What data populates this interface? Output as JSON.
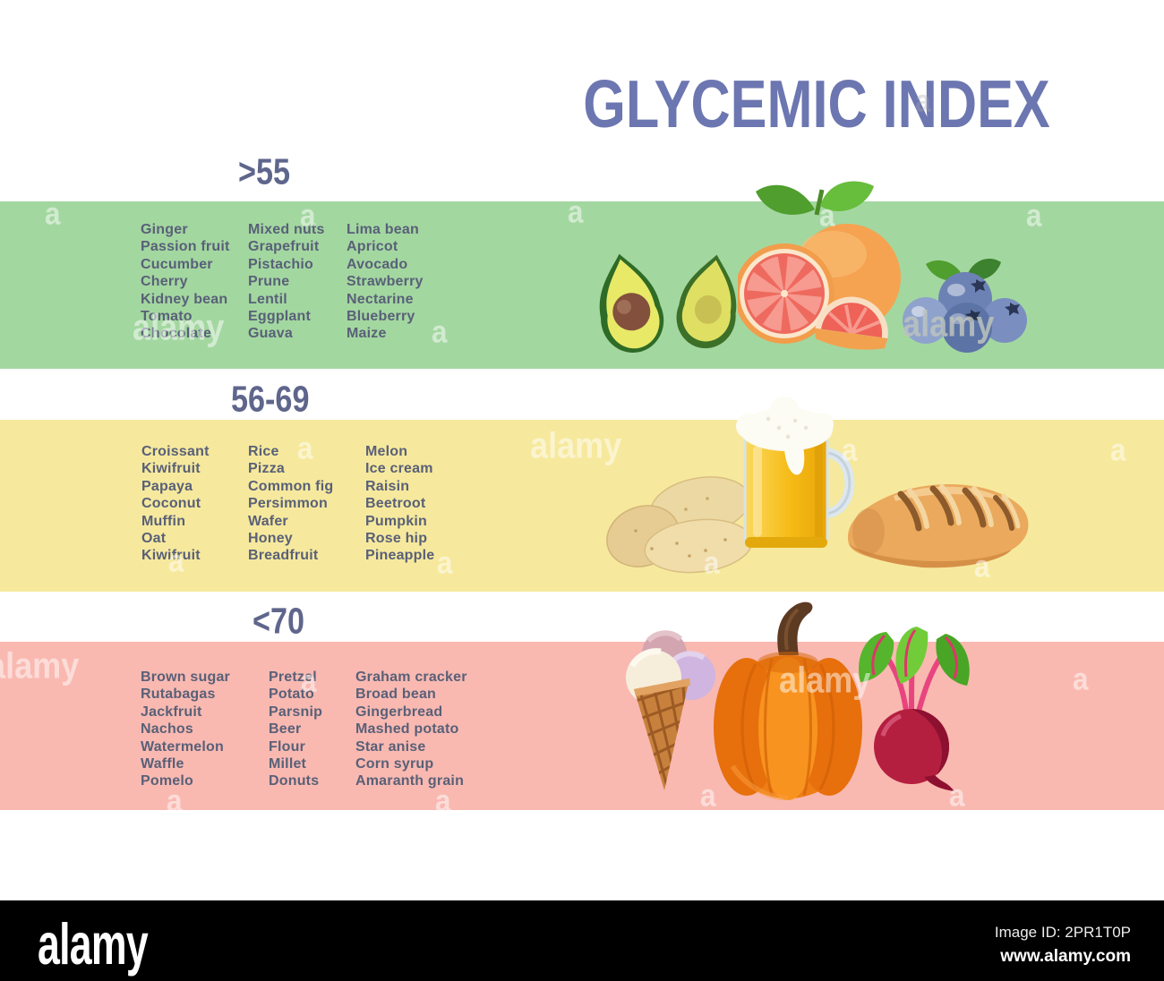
{
  "title": "GLYCEMIC INDEX",
  "sections": [
    {
      "range_label": ">55",
      "band_color": "#a3d7a0",
      "columns": [
        [
          "Ginger",
          "Passion fruit",
          "Cucumber",
          "Cherry",
          "Kidney bean",
          "Tomato",
          "Chocolate"
        ],
        [
          "Mixed nuts",
          "Grapefruit",
          "Pistachio",
          "Prune",
          "Lentil",
          "Eggplant",
          "Guava"
        ],
        [
          "Lima bean",
          "Apricot",
          "Avocado",
          "Strawberry",
          "Nectarine",
          "Blueberry",
          "Maize"
        ]
      ],
      "illustrations": [
        "avocado",
        "grapefruit",
        "blueberries"
      ]
    },
    {
      "range_label": "56-69",
      "band_color": "#f6e99d",
      "columns": [
        [
          "Croissant",
          "Kiwifruit",
          "Papaya",
          "Coconut",
          "Muffin",
          "Oat",
          "Kiwifruit"
        ],
        [
          "Rice",
          "Pizza",
          "Common fig",
          "Persimmon",
          "Wafer",
          "Honey",
          "Breadfruit"
        ],
        [
          "Melon",
          "Ice cream",
          "Raisin",
          "Beetroot",
          "Pumpkin",
          "Rose hip",
          "Pineapple"
        ]
      ],
      "illustrations": [
        "potatoes",
        "beer-mug",
        "bread-loaf"
      ]
    },
    {
      "range_label": "<70",
      "band_color": "#f9b9b1",
      "columns": [
        [
          "Brown sugar",
          "Rutabagas",
          "Jackfruit",
          "Nachos",
          "Watermelon",
          "Waffle",
          "Pomelo"
        ],
        [
          "Pretzel",
          "Potato",
          "Parsnip",
          "Beer",
          "Flour",
          "Millet",
          "Donuts"
        ],
        [
          "Graham cracker",
          "Broad bean",
          "Gingerbread",
          "Mashed potato",
          "Star anise",
          "Corn syrup",
          "Amaranth grain"
        ]
      ],
      "illustrations": [
        "ice-cream-cone",
        "pumpkin",
        "beetroot"
      ]
    }
  ],
  "watermark": {
    "word": "alamy",
    "letter": "a"
  },
  "footer": {
    "logo": "alamy",
    "image_id": "Image ID: 2PR1T0P",
    "url": "www.alamy.com"
  },
  "colors": {
    "title_text": "#6c76b0",
    "heading_text": "#5f668c",
    "list_text": "#596078",
    "band_green": "#a3d7a0",
    "band_yellow": "#f6e99d",
    "band_pink": "#f9b9b1",
    "footer_bg": "#000000",
    "footer_text": "#ffffff"
  }
}
